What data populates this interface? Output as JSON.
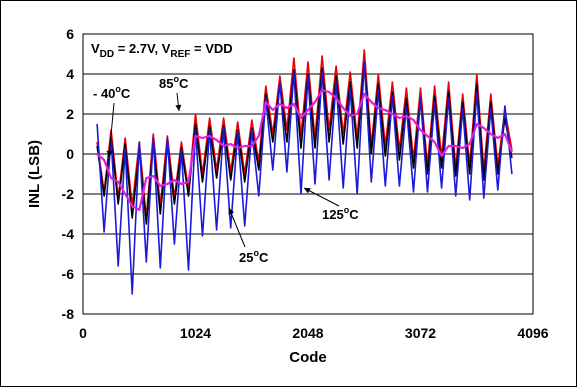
{
  "chart_data": {
    "type": "line",
    "title": "",
    "condition_label": {
      "prefix1": "V",
      "sub1": "DD",
      "mid": " = 2.7V,  V",
      "sub2": "REF",
      "suffix": " = VDD"
    },
    "xlabel": "Code",
    "ylabel": "INL (LSB)",
    "xlim": [
      0,
      4096
    ],
    "ylim": [
      -8,
      6
    ],
    "xticks": [
      0,
      1024,
      2048,
      3072,
      4096
    ],
    "xtick_labels": [
      "0",
      "1024",
      "2048",
      "3072",
      "4096"
    ],
    "yticks": [
      -8,
      -6,
      -4,
      -2,
      0,
      2,
      4,
      6
    ],
    "ytick_labels": [
      "-8",
      "-6",
      "-4",
      "-2",
      "0",
      "2",
      "4",
      "6"
    ],
    "grid": "horizontal",
    "annotations": [
      {
        "text": "- 40",
        "sup": "o",
        "suffix": "C",
        "target": "-40C"
      },
      {
        "text": "85",
        "sup": "o",
        "suffix": "C",
        "target": "85C"
      },
      {
        "text": "25",
        "sup": "o",
        "suffix": "C",
        "target": "25C"
      },
      {
        "text": "125",
        "sup": "o",
        "suffix": "C",
        "target": "125C"
      }
    ],
    "series": [
      {
        "color": "#e8000b",
        "x": [
          128,
          192,
          256,
          320,
          384,
          448,
          512,
          576,
          640,
          704,
          768,
          832,
          896,
          960,
          1024,
          1088,
          1152,
          1216,
          1280,
          1344,
          1408,
          1472,
          1536,
          1600,
          1664,
          1728,
          1792,
          1856,
          1920,
          1984,
          2048,
          2112,
          2176,
          2240,
          2304,
          2368,
          2432,
          2496,
          2560,
          2624,
          2688,
          2752,
          2816,
          2880,
          2944,
          3008,
          3072,
          3136,
          3200,
          3264,
          3328,
          3392,
          3456,
          3520,
          3584,
          3648,
          3712,
          3776,
          3840,
          3904
        ],
        "y": [
          0.6,
          -1.9,
          1.2,
          -2.2,
          0.8,
          -2.6,
          0.6,
          -3.2,
          1.0,
          -2.6,
          0.9,
          -2.2,
          0.6,
          -1.8,
          2.0,
          -1.0,
          1.8,
          -0.8,
          1.8,
          -0.9,
          1.6,
          -1.0,
          1.7,
          -0.4,
          3.4,
          1.0,
          3.9,
          1.2,
          4.8,
          0.9,
          4.6,
          0.8,
          4.9,
          1.2,
          4.4,
          1.0,
          4.1,
          0.8,
          5.2,
          0.4,
          4.0,
          0.4,
          3.6,
          0.2,
          3.3,
          -0.3,
          3.3,
          -0.6,
          3.4,
          -0.2,
          3.6,
          -0.7,
          3.0,
          -0.6,
          4.0,
          -0.8,
          3.0,
          -0.6,
          2.2,
          0.2
        ]
      },
      {
        "color": "#000000",
        "x": [
          128,
          192,
          256,
          320,
          384,
          448,
          512,
          576,
          640,
          704,
          768,
          832,
          896,
          960,
          1024,
          1088,
          1152,
          1216,
          1280,
          1344,
          1408,
          1472,
          1536,
          1600,
          1664,
          1728,
          1792,
          1856,
          1920,
          1984,
          2048,
          2112,
          2176,
          2240,
          2304,
          2368,
          2432,
          2496,
          2560,
          2624,
          2688,
          2752,
          2816,
          2880,
          2944,
          3008,
          3072,
          3136,
          3200,
          3264,
          3328,
          3392,
          3456,
          3520,
          3584,
          3648,
          3712,
          3776,
          3840,
          3904
        ],
        "y": [
          0.4,
          -2.1,
          0.8,
          -2.5,
          0.5,
          -3.2,
          0.2,
          -3.5,
          0.6,
          -3.0,
          0.5,
          -2.5,
          0.3,
          -2.1,
          1.5,
          -1.4,
          1.4,
          -1.2,
          1.4,
          -1.3,
          1.2,
          -1.4,
          1.3,
          -0.8,
          3.0,
          0.6,
          3.5,
          0.6,
          4.2,
          0.3,
          4.0,
          0.3,
          4.3,
          0.6,
          3.9,
          0.5,
          3.6,
          0.3,
          4.6,
          0.0,
          3.5,
          -0.1,
          3.1,
          -0.3,
          2.8,
          -0.7,
          2.8,
          -1.0,
          2.9,
          -0.7,
          3.1,
          -1.1,
          2.6,
          -1.0,
          3.5,
          -1.3,
          2.6,
          -1.0,
          1.8,
          -0.2
        ]
      },
      {
        "color": "#1a1ad8",
        "x": [
          128,
          192,
          256,
          320,
          384,
          448,
          512,
          576,
          640,
          704,
          768,
          832,
          896,
          960,
          1024,
          1088,
          1152,
          1216,
          1280,
          1344,
          1408,
          1472,
          1536,
          1600,
          1664,
          1728,
          1792,
          1856,
          1920,
          1984,
          2048,
          2112,
          2176,
          2240,
          2304,
          2368,
          2432,
          2496,
          2560,
          2624,
          2688,
          2752,
          2816,
          2880,
          2944,
          3008,
          3072,
          3136,
          3200,
          3264,
          3328,
          3392,
          3456,
          3520,
          3584,
          3648,
          3712,
          3776,
          3840,
          3904
        ],
        "y": [
          1.5,
          -3.9,
          0.8,
          -5.6,
          0.3,
          -7.0,
          0.6,
          -5.4,
          0.8,
          -5.7,
          0.8,
          -4.5,
          0.2,
          -5.8,
          1.2,
          -4.1,
          1.2,
          -3.8,
          1.3,
          -3.7,
          1.1,
          -3.6,
          1.2,
          -2.1,
          2.8,
          -0.8,
          3.6,
          -0.9,
          4.1,
          -2.0,
          3.9,
          -1.5,
          4.1,
          -1.3,
          3.6,
          -1.7,
          3.3,
          -2.0,
          4.6,
          -1.4,
          3.2,
          -1.6,
          2.9,
          -1.6,
          2.4,
          -1.9,
          2.8,
          -1.9,
          2.6,
          -1.7,
          2.8,
          -2.1,
          2.3,
          -2.3,
          3.1,
          -2.2,
          2.3,
          -1.8,
          2.4,
          -1.0
        ]
      },
      {
        "color": "#e020e0",
        "x": [
          128,
          192,
          256,
          320,
          384,
          448,
          512,
          576,
          640,
          704,
          768,
          832,
          896,
          960,
          1024,
          1088,
          1152,
          1216,
          1280,
          1344,
          1408,
          1472,
          1536,
          1600,
          1664,
          1728,
          1792,
          1856,
          1920,
          1984,
          2048,
          2112,
          2176,
          2240,
          2304,
          2368,
          2432,
          2496,
          2560,
          2624,
          2688,
          2752,
          2816,
          2880,
          2944,
          3008,
          3072,
          3136,
          3200,
          3264,
          3328,
          3392,
          3456,
          3520,
          3584,
          3648,
          3712,
          3776,
          3840,
          3904
        ],
        "y": [
          0.0,
          -0.3,
          -1.2,
          -1.4,
          -2.0,
          -2.6,
          -2.8,
          -1.2,
          -1.1,
          -1.6,
          -1.5,
          -1.3,
          -1.5,
          -1.4,
          0.9,
          0.8,
          0.9,
          0.7,
          0.4,
          0.5,
          0.3,
          0.4,
          0.4,
          0.9,
          2.6,
          2.2,
          2.5,
          2.3,
          2.5,
          1.8,
          2.2,
          2.6,
          3.2,
          3.1,
          2.8,
          2.3,
          1.9,
          2.0,
          3.0,
          2.6,
          2.3,
          2.2,
          2.0,
          1.8,
          1.9,
          1.7,
          1.2,
          0.9,
          0.6,
          -0.1,
          0.4,
          0.4,
          0.3,
          0.5,
          1.5,
          1.3,
          1.0,
          0.8,
          1.0,
          0.1
        ]
      }
    ]
  }
}
